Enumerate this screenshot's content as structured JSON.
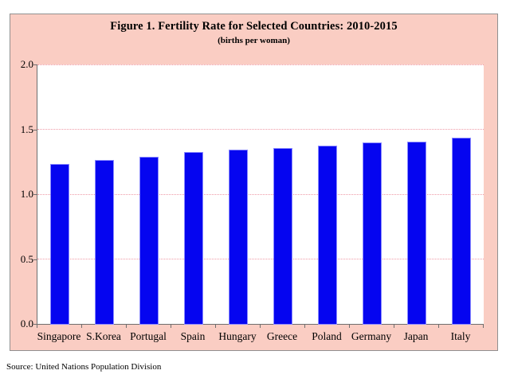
{
  "chart_data": {
    "type": "bar",
    "title": "Figure 1. Fertility Rate for Selected Countries: 2010-2015",
    "subtitle": "(births per woman)",
    "categories": [
      "Singapore",
      "S.Korea",
      "Portugal",
      "Spain",
      "Hungary",
      "Greece",
      "Poland",
      "Germany",
      "Japan",
      "Italy"
    ],
    "values": [
      1.23,
      1.26,
      1.28,
      1.32,
      1.34,
      1.35,
      1.37,
      1.39,
      1.4,
      1.43
    ],
    "xlabel": "",
    "ylabel": "",
    "ylim": [
      0,
      2
    ],
    "ytick_values": [
      0,
      0.5,
      1,
      1.5,
      2
    ],
    "ytick_labels": [
      "0.0",
      "0.5",
      "1.0",
      "1.5",
      "2.0"
    ],
    "grid": "horizontal-dotted",
    "legend": "none",
    "source": "Source: United Nations Population Division",
    "colors": {
      "bar": "#0505f0",
      "bar_edge": "#8a8aff",
      "panel_background": "#facdc3",
      "plot_background": "#ffffff",
      "gridline": "#ef9aa6",
      "axis": "#6e6e6e",
      "text": "#000000",
      "panel_border": "#909090"
    }
  }
}
